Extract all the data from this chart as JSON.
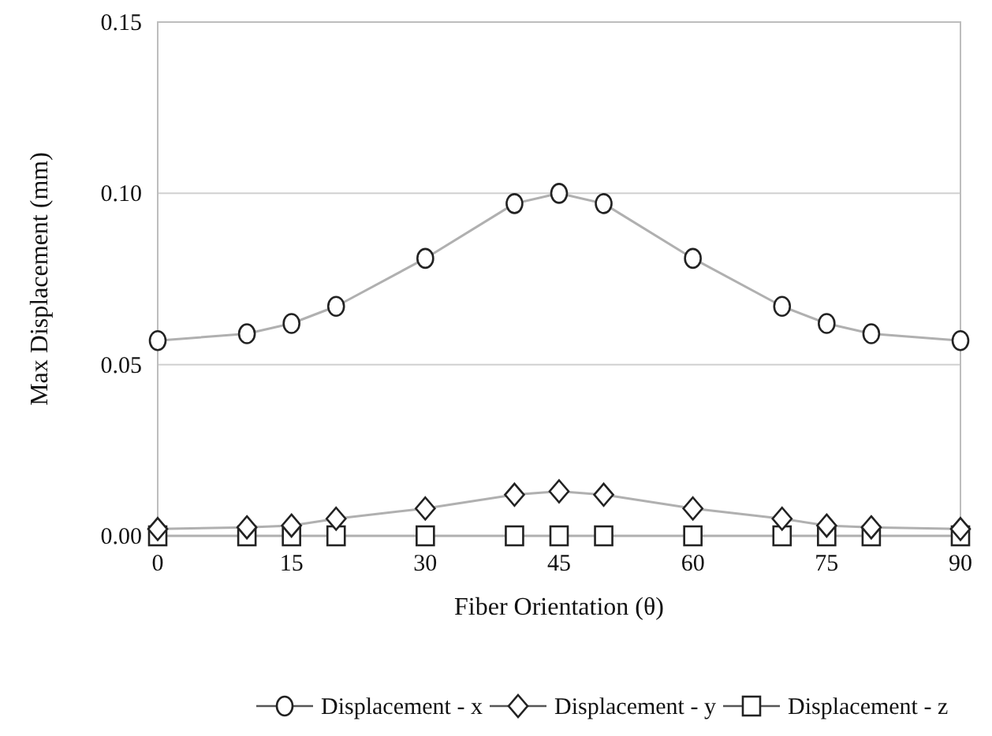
{
  "chart_data": {
    "type": "line",
    "xlabel": "Fiber Orientation (θ)",
    "ylabel": "Max Displacement (mm)",
    "x": [
      0,
      10,
      15,
      20,
      30,
      40,
      45,
      50,
      60,
      70,
      75,
      80,
      90
    ],
    "xlim": [
      0,
      90
    ],
    "xticks": [
      0,
      15,
      30,
      45,
      60,
      75,
      90
    ],
    "ylim": [
      0,
      0.15
    ],
    "yticks": [
      {
        "value": 0,
        "label": "0.00"
      },
      {
        "value": 0.05,
        "label": "0.05"
      },
      {
        "value": 0.1,
        "label": "0.10"
      },
      {
        "value": 0.15,
        "label": "0.15"
      }
    ],
    "grid": "y",
    "legend": "bottom",
    "line_style": "solid",
    "series": [
      {
        "name": "Displacement - x",
        "color": "#b0b0b0",
        "marker": "circle",
        "values": [
          0.057,
          0.059,
          0.062,
          0.067,
          0.081,
          0.097,
          0.1,
          0.097,
          0.081,
          0.067,
          0.062,
          0.059,
          0.057
        ]
      },
      {
        "name": "Displacement - y",
        "color": "#b0b0b0",
        "marker": "diamond",
        "values": [
          0.002,
          0.0025,
          0.003,
          0.005,
          0.008,
          0.012,
          0.013,
          0.012,
          0.008,
          0.005,
          0.003,
          0.0025,
          0.002
        ]
      },
      {
        "name": "Displacement - z",
        "color": "#b0b0b0",
        "marker": "square",
        "values": [
          0,
          0,
          0,
          0,
          0,
          0,
          0,
          0,
          0,
          0,
          0,
          0,
          0
        ]
      }
    ]
  }
}
